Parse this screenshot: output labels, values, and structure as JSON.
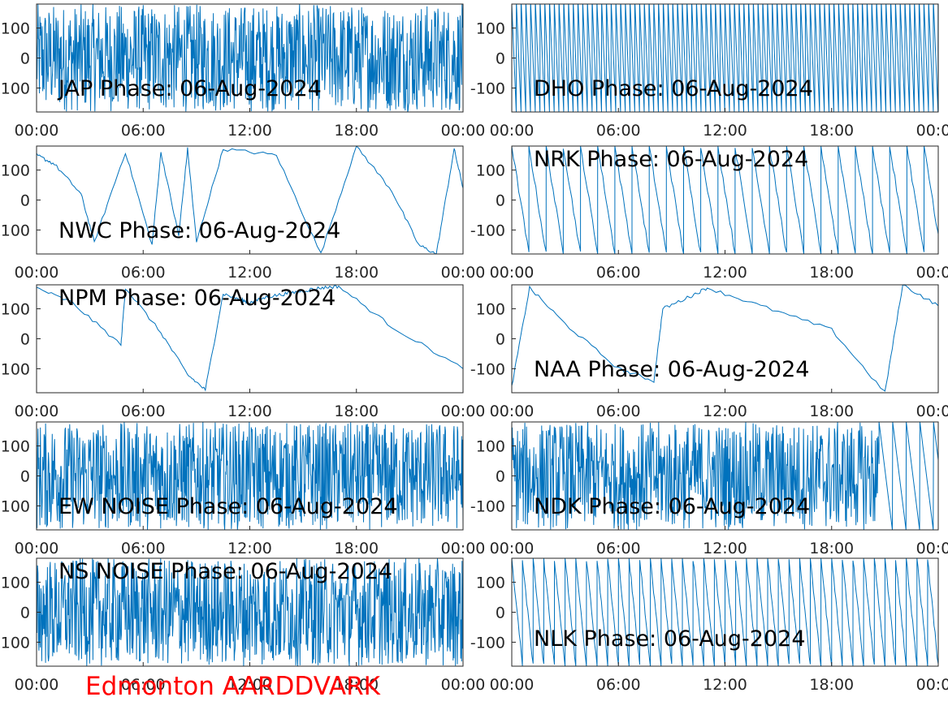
{
  "figure": {
    "footer_label": "Edmonton AARDDVARK",
    "footer_color": "#ff0000",
    "line_color": "#0072bd"
  },
  "chart_data": [
    {
      "type": "line",
      "panel": "jap",
      "title": "JAP Phase: 06-Aug-2024",
      "x_ticks": [
        "00:00",
        "06:00",
        "12:00",
        "18:00",
        "00:00"
      ],
      "y_ticks": [
        100,
        0,
        -100
      ],
      "ylim": [
        -180,
        180
      ],
      "pattern": "noise",
      "series": [
        {
          "x": [
            "00:00",
            "06:00",
            "12:00",
            "18:00",
            "00:00"
          ],
          "y": [
            0,
            0,
            0,
            0,
            0
          ]
        }
      ]
    },
    {
      "type": "line",
      "panel": "dho",
      "title": "DHO Phase: 06-Aug-2024",
      "x_ticks": [
        "00:00",
        "06:00",
        "12:00",
        "18:00",
        "00:00"
      ],
      "y_ticks": [
        100,
        0,
        -100
      ],
      "ylim": [
        -180,
        180
      ],
      "pattern": "dense-wrap",
      "series": [
        {
          "x": [
            "00:00",
            "06:00",
            "12:00",
            "18:00",
            "00:00"
          ],
          "y": [
            0,
            0,
            0,
            0,
            0
          ]
        }
      ]
    },
    {
      "type": "line",
      "panel": "nwc",
      "title": "NWC Phase: 06-Aug-2024",
      "x_ticks": [
        "00:00",
        "06:00",
        "12:00",
        "18:00",
        "00:00"
      ],
      "y_ticks": [
        100,
        0,
        -100
      ],
      "ylim": [
        -180,
        180
      ],
      "pattern": "wrap",
      "series": [
        {
          "x": [
            "00:00",
            "01:00",
            "02:30",
            "03:15",
            "05:00",
            "06:30",
            "07:00",
            "08:00",
            "08:30",
            "09:00",
            "10:30",
            "13:30",
            "16:00",
            "18:00",
            "20:00",
            "21:30",
            "22:30",
            "23:30",
            "24:00"
          ],
          "y": [
            150,
            120,
            20,
            -140,
            160,
            -150,
            160,
            -120,
            170,
            -140,
            170,
            150,
            -180,
            180,
            30,
            -150,
            -180,
            170,
            40
          ]
        }
      ]
    },
    {
      "type": "line",
      "panel": "nrk",
      "title": "NRK Phase: 06-Aug-2024",
      "x_ticks": [
        "00:00",
        "06:00",
        "12:00",
        "18:00",
        "00:00"
      ],
      "y_ticks": [
        100,
        0,
        -100
      ],
      "ylim": [
        -180,
        180
      ],
      "pattern": "wrap",
      "series": [
        {
          "x": [
            "00:00",
            "06:00",
            "12:00",
            "18:00",
            "00:00"
          ],
          "y": [
            0,
            0,
            0,
            0,
            0
          ]
        }
      ]
    },
    {
      "type": "line",
      "panel": "npm",
      "title": "NPM Phase: 06-Aug-2024",
      "x_ticks": [
        "00:00",
        "06:00",
        "12:00",
        "18:00",
        "00:00"
      ],
      "y_ticks": [
        100,
        0,
        -100
      ],
      "ylim": [
        -180,
        180
      ],
      "pattern": "slope",
      "series": [
        {
          "x": [
            "00:00",
            "02:00",
            "04:45",
            "05:00",
            "07:00",
            "08:30",
            "09:30",
            "10:30",
            "11:30",
            "12:00",
            "13:00",
            "14:00",
            "15:00",
            "16:00",
            "17:00",
            "20:00",
            "24:00"
          ],
          "y": [
            170,
            120,
            -20,
            170,
            20,
            -120,
            -170,
            150,
            130,
            120,
            140,
            150,
            160,
            170,
            175,
            40,
            -100
          ]
        }
      ]
    },
    {
      "type": "line",
      "panel": "naa",
      "title": "NAA Phase: 06-Aug-2024",
      "x_ticks": [
        "00:00",
        "06:00",
        "12:00",
        "18:00",
        "00:00"
      ],
      "y_ticks": [
        100,
        0,
        -100
      ],
      "ylim": [
        -180,
        180
      ],
      "pattern": "slope",
      "series": [
        {
          "x": [
            "00:00",
            "01:00",
            "03:00",
            "06:00",
            "08:00",
            "08:30",
            "10:00",
            "11:00",
            "14:00",
            "18:00",
            "21:00",
            "22:00",
            "24:00"
          ],
          "y": [
            -160,
            170,
            50,
            -100,
            -140,
            100,
            140,
            170,
            110,
            30,
            -180,
            180,
            110
          ]
        }
      ]
    },
    {
      "type": "line",
      "panel": "ew_noise",
      "title": "EW NOISE Phase: 06-Aug-2024",
      "x_ticks": [
        "00:00",
        "06:00",
        "12:00",
        "18:00",
        "00:00"
      ],
      "y_ticks": [
        100,
        0,
        -100
      ],
      "ylim": [
        -180,
        180
      ],
      "pattern": "noise",
      "series": [
        {
          "x": [
            "00:00",
            "06:00",
            "12:00",
            "18:00",
            "00:00"
          ],
          "y": [
            0,
            0,
            0,
            0,
            0
          ]
        }
      ]
    },
    {
      "type": "line",
      "panel": "ndk",
      "title": "NDK Phase: 06-Aug-2024",
      "x_ticks": [
        "00:00",
        "06:00",
        "12:00",
        "18:00",
        "00:00"
      ],
      "y_ticks": [
        100,
        0,
        -100
      ],
      "ylim": [
        -180,
        180
      ],
      "pattern": "noise-then-wrap",
      "series": [
        {
          "x": [
            "00:00",
            "06:00",
            "12:00",
            "18:00",
            "00:00"
          ],
          "y": [
            0,
            0,
            0,
            0,
            0
          ]
        }
      ]
    },
    {
      "type": "line",
      "panel": "ns_noise",
      "title": "NS NOISE Phase: 06-Aug-2024",
      "x_ticks": [
        "00:00",
        "06:00",
        "12:00",
        "18:00",
        "00:00"
      ],
      "y_ticks": [
        100,
        0,
        -100
      ],
      "ylim": [
        -180,
        180
      ],
      "pattern": "noise",
      "series": [
        {
          "x": [
            "00:00",
            "06:00",
            "12:00",
            "18:00",
            "00:00"
          ],
          "y": [
            0,
            0,
            0,
            0,
            0
          ]
        }
      ]
    },
    {
      "type": "line",
      "panel": "nlk",
      "title": "NLK Phase: 06-Aug-2024",
      "x_ticks": [
        "00:00",
        "06:00",
        "12:00",
        "18:00",
        "00:00"
      ],
      "y_ticks": [
        100,
        0,
        -100
      ],
      "ylim": [
        -180,
        180
      ],
      "pattern": "wrap",
      "series": [
        {
          "x": [
            "00:00",
            "06:00",
            "12:00",
            "18:00",
            "00:00"
          ],
          "y": [
            0,
            0,
            0,
            0,
            0
          ]
        }
      ]
    }
  ]
}
